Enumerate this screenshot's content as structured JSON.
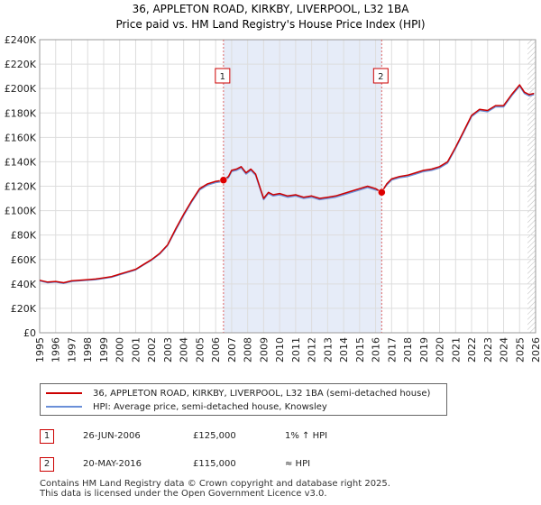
{
  "chart_data": {
    "type": "line",
    "title": "36, APPLETON ROAD, KIRKBY, LIVERPOOL, L32 1BA",
    "subtitle": "Price paid vs. HM Land Registry's House Price Index (HPI)",
    "xlim": [
      1995,
      2026
    ],
    "ylim": [
      0,
      240000
    ],
    "x_ticks": [
      1995,
      1996,
      1997,
      1998,
      1999,
      2000,
      2001,
      2002,
      2003,
      2004,
      2005,
      2006,
      2007,
      2008,
      2009,
      2010,
      2011,
      2012,
      2013,
      2014,
      2015,
      2016,
      2017,
      2018,
      2019,
      2020,
      2021,
      2022,
      2023,
      2024,
      2025,
      2026
    ],
    "y_ticks": [
      0,
      20000,
      40000,
      60000,
      80000,
      100000,
      120000,
      140000,
      160000,
      180000,
      200000,
      220000,
      240000
    ],
    "y_tick_labels": [
      "£0",
      "£20K",
      "£40K",
      "£60K",
      "£80K",
      "£100K",
      "£120K",
      "£140K",
      "£160K",
      "£180K",
      "£200K",
      "£220K",
      "£240K"
    ],
    "shaded_range": [
      2006.49,
      2016.38
    ],
    "hatch_from": 2025.5,
    "series": [
      {
        "name": "36, APPLETON ROAD, KIRKBY, LIVERPOOL, L32 1BA (semi-detached house)",
        "color": "#cc0000",
        "x": [
          1995,
          1995.5,
          1996,
          1996.5,
          1997,
          1997.5,
          1998,
          1998.5,
          1999,
          1999.5,
          2000,
          2000.5,
          2001,
          2001.5,
          2002,
          2002.5,
          2003,
          2003.5,
          2004,
          2004.5,
          2005,
          2005.5,
          2006,
          2006.49,
          2006.8,
          2007,
          2007.3,
          2007.6,
          2007.9,
          2008.2,
          2008.5,
          2008.8,
          2009,
          2009.3,
          2009.6,
          2010,
          2010.5,
          2011,
          2011.5,
          2012,
          2012.5,
          2013,
          2013.5,
          2014,
          2014.5,
          2015,
          2015.5,
          2016,
          2016.38,
          2016.7,
          2017,
          2017.5,
          2018,
          2018.5,
          2019,
          2019.5,
          2020,
          2020.5,
          2021,
          2021.5,
          2022,
          2022.5,
          2023,
          2023.5,
          2024,
          2024.5,
          2025,
          2025.3,
          2025.6,
          2025.9
        ],
        "y": [
          43000,
          41500,
          42000,
          41000,
          42500,
          43000,
          43500,
          44000,
          45000,
          46000,
          48000,
          50000,
          52000,
          56000,
          60000,
          65000,
          72000,
          85000,
          97000,
          108000,
          118000,
          122000,
          124000,
          125000,
          128000,
          133000,
          134000,
          136000,
          131000,
          134000,
          130000,
          118000,
          110000,
          115000,
          113000,
          114000,
          112000,
          113000,
          111000,
          112000,
          110000,
          111000,
          112000,
          114000,
          116000,
          118000,
          120000,
          118000,
          115000,
          122000,
          126000,
          128000,
          129000,
          131000,
          133000,
          134000,
          136000,
          140000,
          152000,
          165000,
          178000,
          183000,
          182000,
          186000,
          186000,
          195000,
          203000,
          197000,
          195000,
          196000
        ]
      },
      {
        "name": "HPI: Average price, semi-detached house, Knowsley",
        "color": "#6a8fd8",
        "x": [
          1995,
          1995.5,
          1996,
          1996.5,
          1997,
          1997.5,
          1998,
          1998.5,
          1999,
          1999.5,
          2000,
          2000.5,
          2001,
          2001.5,
          2002,
          2002.5,
          2003,
          2003.5,
          2004,
          2004.5,
          2005,
          2005.5,
          2006,
          2006.49,
          2006.8,
          2007,
          2007.3,
          2007.6,
          2007.9,
          2008.2,
          2008.5,
          2008.8,
          2009,
          2009.3,
          2009.6,
          2010,
          2010.5,
          2011,
          2011.5,
          2012,
          2012.5,
          2013,
          2013.5,
          2014,
          2014.5,
          2015,
          2015.5,
          2016,
          2016.38,
          2016.7,
          2017,
          2017.5,
          2018,
          2018.5,
          2019,
          2019.5,
          2020,
          2020.5,
          2021,
          2021.5,
          2022,
          2022.5,
          2023,
          2023.5,
          2024,
          2024.5,
          2025,
          2025.3,
          2025.6,
          2025.9
        ],
        "y": [
          42500,
          41000,
          41500,
          40500,
          42000,
          42500,
          43000,
          43500,
          44500,
          45500,
          47500,
          49500,
          51500,
          55500,
          59500,
          64500,
          71500,
          84000,
          96000,
          107000,
          117000,
          121000,
          123000,
          124000,
          127000,
          132000,
          133000,
          135000,
          130000,
          133000,
          129000,
          117000,
          109000,
          114000,
          112000,
          113000,
          111000,
          112000,
          110000,
          111000,
          109000,
          110000,
          111000,
          113000,
          115000,
          117000,
          119000,
          117000,
          116000,
          121000,
          125000,
          127000,
          128000,
          130000,
          132000,
          133000,
          135000,
          139000,
          151000,
          164000,
          177000,
          182000,
          181000,
          185000,
          185000,
          194000,
          202000,
          196000,
          194000,
          195000
        ]
      }
    ],
    "markers": [
      {
        "label": "1",
        "x": 2006.49,
        "y": 125000
      },
      {
        "label": "2",
        "x": 2016.38,
        "y": 115000
      }
    ]
  },
  "legend": {
    "property_label": "36, APPLETON ROAD, KIRKBY, LIVERPOOL, L32 1BA (semi-detached house)",
    "hpi_label": "HPI: Average price, semi-detached house, Knowsley"
  },
  "sales": [
    {
      "num": "1",
      "date": "26-JUN-2006",
      "price": "£125,000",
      "hpi": "1% ↑ HPI"
    },
    {
      "num": "2",
      "date": "20-MAY-2016",
      "price": "£115,000",
      "hpi": "≈ HPI"
    }
  ],
  "footer": {
    "line1": "Contains HM Land Registry data © Crown copyright and database right 2025.",
    "line2": "This data is licensed under the Open Government Licence v3.0."
  }
}
